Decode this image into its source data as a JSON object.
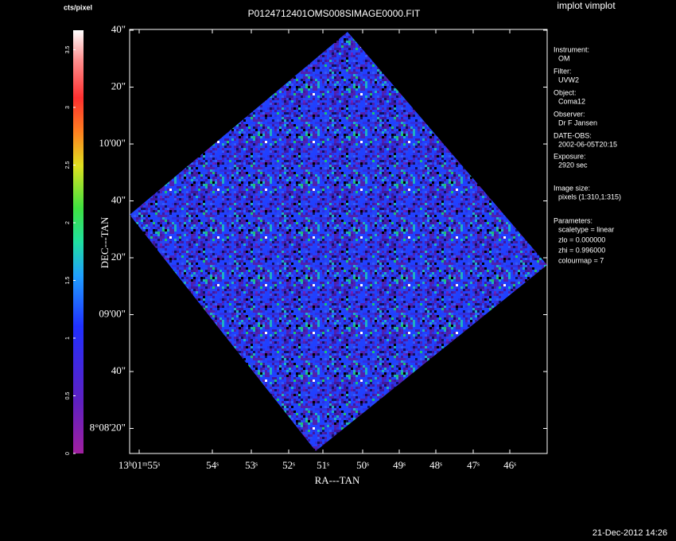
{
  "title": "P0124712401OMS008SIMAGE0000.FIT",
  "app": "implot vimplot",
  "timestamp": "21-Dec-2012 14:26",
  "colorbar": {
    "label": "cts/pixel",
    "ticks": [
      "0",
      "0.5",
      "1",
      "1.5",
      "2",
      "2.5",
      "3",
      "3.5"
    ]
  },
  "y_axis": {
    "label": "DEC---TAN",
    "ticks": [
      "40\"",
      "20\"",
      "10'00\"",
      "40\"",
      "20\"",
      "09'00\"",
      "40\"",
      "8°08'20\""
    ]
  },
  "x_axis": {
    "label": "RA---TAN",
    "ticks": [
      "13ʰ01ᵐ55ˢ",
      "54ˢ",
      "53ˢ",
      "52ˢ",
      "51ˢ",
      "50ˢ",
      "49ˢ",
      "48ˢ",
      "47ˢ",
      "46ˢ"
    ]
  },
  "info": [
    {
      "heading": "Instrument:",
      "lines": [
        "OM"
      ]
    },
    {
      "heading": "Filter:",
      "lines": [
        "UVW2"
      ]
    },
    {
      "heading": "Object:",
      "lines": [
        "Coma12"
      ]
    },
    {
      "heading": "Observer:",
      "lines": [
        "Dr F Jansen"
      ]
    },
    {
      "heading": "DATE-OBS:",
      "lines": [
        "2002-06-05T20:15"
      ]
    },
    {
      "heading": "Exposure:",
      "lines": [
        "2920 sec"
      ]
    },
    {
      "heading": "Image size:",
      "lines": [
        "pixels (1:310,1:315)"
      ]
    },
    {
      "heading": "Parameters:",
      "lines": [
        "scaletype = linear",
        "zlo = 0.000000",
        "zhi = 0.996000",
        "colourmap =   7"
      ]
    }
  ]
}
